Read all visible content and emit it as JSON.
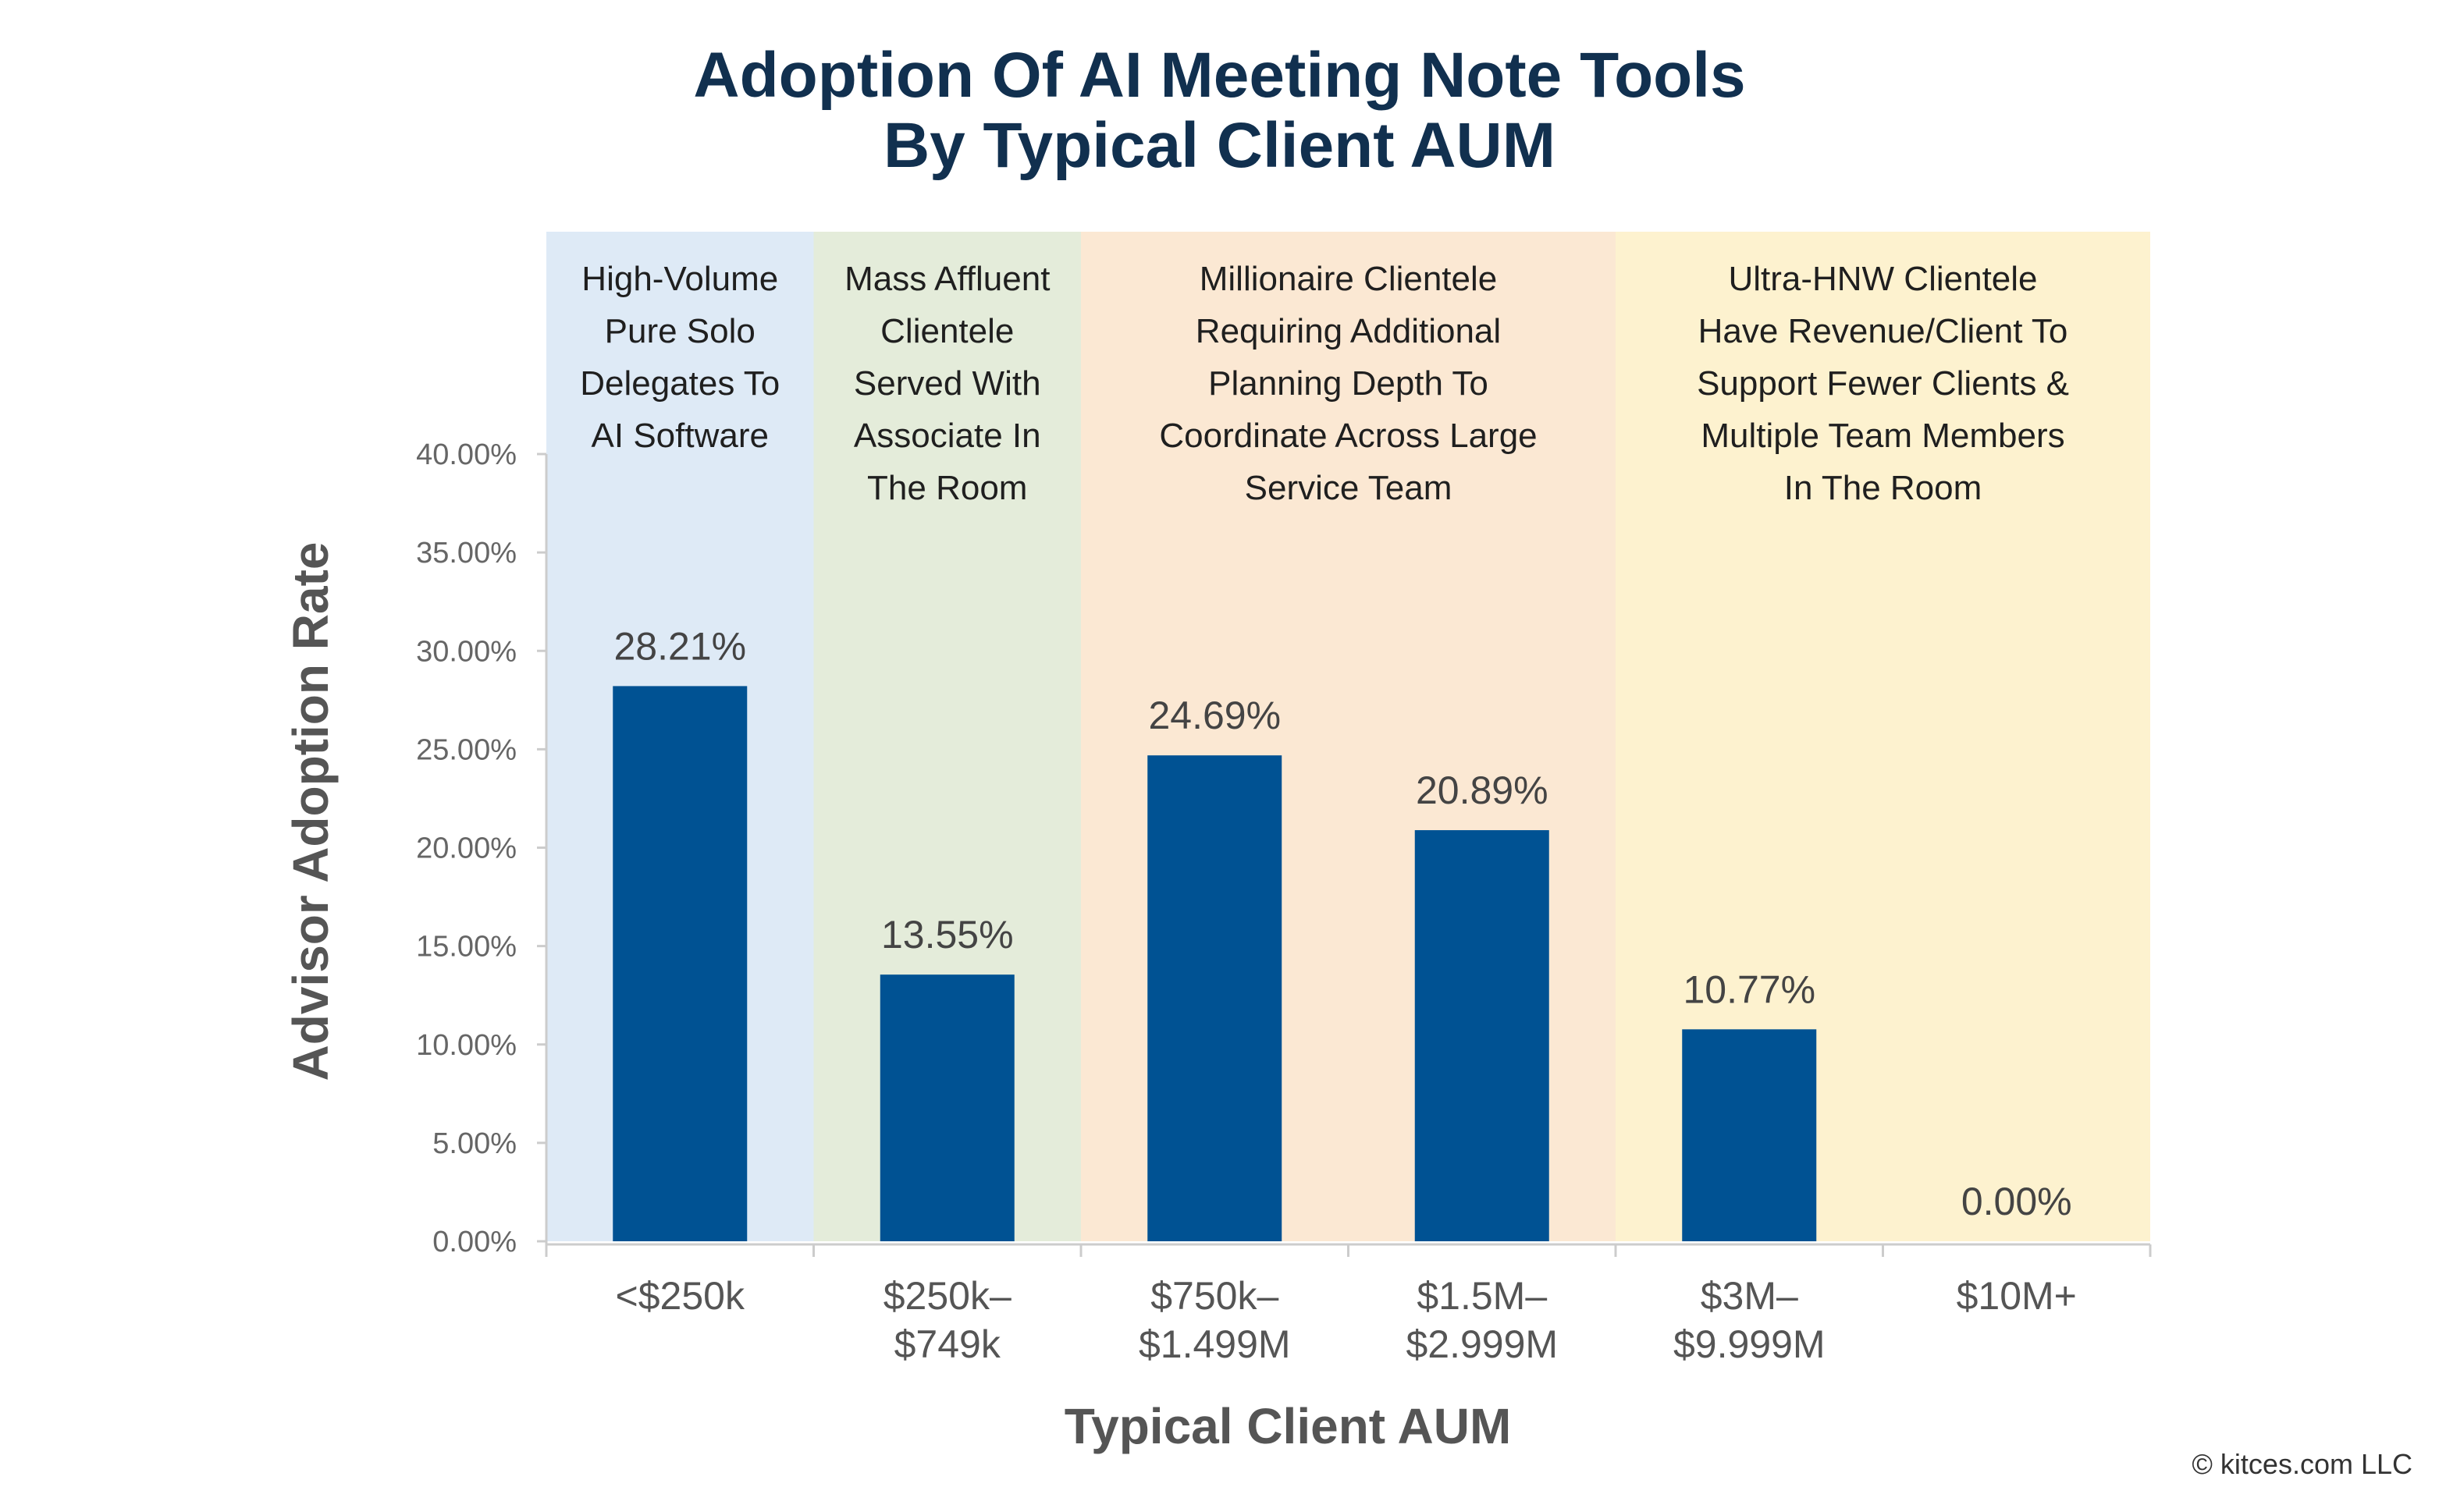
{
  "chart_data": {
    "type": "bar",
    "title": [
      "Adoption Of AI Meeting Note Tools",
      "By Typical Client AUM"
    ],
    "xlabel": "Typical Client AUM",
    "ylabel": "Advisor Adoption Rate",
    "ylim": [
      0,
      40
    ],
    "yticks": [
      0,
      5,
      10,
      15,
      20,
      25,
      30,
      35,
      40
    ],
    "ytick_labels": [
      "0.00%",
      "5.00%",
      "10.00%",
      "15.00%",
      "20.00%",
      "25.00%",
      "30.00%",
      "35.00%",
      "40.00%"
    ],
    "categories": [
      [
        "<$250k"
      ],
      [
        "$250k–",
        "$749k"
      ],
      [
        "$750k–",
        "$1.499M"
      ],
      [
        "$1.5M–",
        "$2.999M"
      ],
      [
        "$3M–",
        "$9.999M"
      ],
      [
        "$10M+"
      ]
    ],
    "values": [
      28.21,
      13.55,
      24.69,
      20.89,
      10.77,
      0.0
    ],
    "data_labels": [
      "28.21%",
      "13.55%",
      "24.69%",
      "20.89%",
      "10.77%",
      "0.00%"
    ],
    "grid": false,
    "bar_color": "#005293",
    "bands": [
      {
        "color": "#deeaf6",
        "categories": [
          0
        ],
        "lines": [
          "High-Volume",
          "Pure Solo",
          "Delegates To",
          "AI Software"
        ]
      },
      {
        "color": "#e4ecda",
        "categories": [
          1
        ],
        "lines": [
          "Mass Affluent",
          "Clientele",
          "Served With",
          "Associate In",
          "The Room"
        ]
      },
      {
        "color": "#fbe8d3",
        "categories": [
          2,
          3
        ],
        "lines": [
          "Millionaire Clientele",
          "Requiring Additional",
          "Planning Depth To",
          "Coordinate Across Large",
          "Service Team"
        ]
      },
      {
        "color": "#fdf2cf",
        "categories": [
          4,
          5
        ],
        "lines": [
          "Ultra-HNW Clientele",
          "Have Revenue/Client To",
          "Support Fewer Clients &",
          "Multiple Team Members",
          "In The Room"
        ]
      }
    ]
  },
  "credit": "© kitces.com LLC"
}
